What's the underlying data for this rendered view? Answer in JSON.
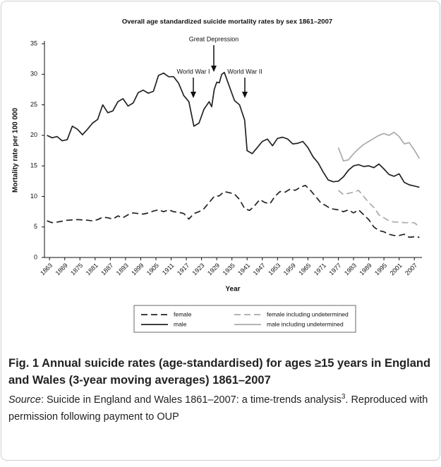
{
  "chart_data": {
    "type": "line",
    "title": "Overall age standardized suicide mortality rates by sex 1861–2007",
    "x_label": "Year",
    "y_label": "Mortality rate per 100 000",
    "xlim": [
      1861,
      2010
    ],
    "ylim": [
      0,
      35
    ],
    "yticks": [
      0,
      5,
      10,
      15,
      20,
      25,
      30,
      35
    ],
    "xticks": [
      1863,
      1869,
      1875,
      1881,
      1887,
      1893,
      1899,
      1905,
      1911,
      1917,
      1923,
      1929,
      1935,
      1941,
      1947,
      1953,
      1959,
      1965,
      1971,
      1977,
      1983,
      1989,
      1995,
      2001,
      2007
    ],
    "grid": false,
    "legend": "bottom",
    "annotations": [
      "World War I",
      "Great Depression",
      "World War II"
    ],
    "series": [
      {
        "name": "female",
        "color": "#222222",
        "style": "dashed",
        "x": [
          1862,
          1864,
          1866,
          1870,
          1874,
          1878,
          1880,
          1882,
          1884,
          1886,
          1888,
          1890,
          1892,
          1894,
          1896,
          1898,
          1900,
          1902,
          1904,
          1906,
          1908,
          1910,
          1912,
          1914,
          1916,
          1918,
          1920,
          1922,
          1924,
          1926,
          1928,
          1930,
          1932,
          1934,
          1936,
          1938,
          1940,
          1942,
          1944,
          1946,
          1948,
          1950,
          1952,
          1954,
          1956,
          1958,
          1960,
          1962,
          1964,
          1966,
          1968,
          1970,
          1972,
          1974,
          1977,
          1979,
          1981,
          1983,
          1985,
          1987,
          1989,
          1991,
          1993,
          1995,
          1997,
          1999,
          2001,
          2003,
          2005,
          2007,
          2009
        ],
        "values": [
          6.0,
          5.7,
          5.8,
          6.1,
          6.2,
          6.1,
          6.0,
          6.2,
          6.6,
          6.5,
          6.3,
          6.8,
          6.5,
          7.0,
          7.3,
          7.2,
          7.1,
          7.3,
          7.6,
          7.8,
          7.5,
          7.8,
          7.5,
          7.4,
          7.2,
          6.3,
          7.2,
          7.5,
          8.0,
          9.0,
          10.0,
          10.1,
          10.8,
          10.6,
          10.4,
          9.5,
          8.0,
          7.7,
          8.5,
          9.5,
          9.0,
          8.8,
          10.0,
          10.8,
          10.7,
          11.2,
          11.0,
          11.5,
          11.8,
          11.0,
          10.0,
          9.0,
          8.5,
          8.0,
          7.8,
          7.5,
          7.8,
          7.3,
          7.8,
          7.0,
          6.2,
          5.0,
          4.4,
          4.2,
          3.8,
          3.6,
          3.6,
          3.8,
          3.3,
          3.4,
          3.3
        ]
      },
      {
        "name": "male",
        "color": "#222222",
        "style": "solid",
        "x": [
          1862,
          1864,
          1866,
          1868,
          1870,
          1872,
          1874,
          1876,
          1878,
          1880,
          1882,
          1884,
          1886,
          1888,
          1890,
          1892,
          1894,
          1896,
          1898,
          1900,
          1902,
          1904,
          1906,
          1908,
          1910,
          1912,
          1914,
          1916,
          1918,
          1920,
          1922,
          1924,
          1926,
          1927,
          1928,
          1929,
          1930,
          1931,
          1932,
          1934,
          1936,
          1938,
          1940,
          1941,
          1943,
          1945,
          1947,
          1949,
          1951,
          1953,
          1955,
          1957,
          1959,
          1961,
          1963,
          1965,
          1967,
          1969,
          1971,
          1973,
          1975,
          1977,
          1979,
          1981,
          1983,
          1985,
          1987,
          1989,
          1991,
          1993,
          1995,
          1997,
          1999,
          2001,
          2003,
          2005,
          2007,
          2009
        ],
        "values": [
          20.0,
          19.6,
          19.8,
          19.1,
          19.3,
          21.5,
          21.0,
          20.1,
          21.0,
          22.0,
          22.6,
          25.0,
          23.7,
          24.0,
          25.5,
          26.0,
          24.8,
          25.3,
          27.0,
          27.4,
          26.9,
          27.2,
          29.8,
          30.2,
          29.6,
          29.6,
          28.5,
          26.5,
          25.5,
          21.5,
          22.0,
          24.3,
          25.5,
          24.7,
          27.5,
          28.7,
          28.6,
          30.0,
          30.3,
          28.0,
          25.7,
          25.0,
          22.5,
          17.5,
          17.0,
          18.0,
          19.0,
          19.4,
          18.3,
          19.5,
          19.7,
          19.4,
          18.6,
          18.7,
          19.0,
          18.0,
          16.5,
          15.5,
          14.0,
          12.7,
          12.4,
          12.5,
          13.2,
          14.3,
          15.0,
          15.2,
          14.9,
          15.0,
          14.7,
          15.3,
          14.5,
          13.6,
          13.3,
          13.7,
          12.3,
          11.9,
          11.7,
          11.5
        ]
      },
      {
        "name": "female including undetermined",
        "color": "#aaaaaa",
        "style": "dashed",
        "x": [
          1977,
          1979,
          1981,
          1983,
          1985,
          1987,
          1989,
          1991,
          1993,
          1995,
          1997,
          1999,
          2001,
          2003,
          2005,
          2007,
          2009
        ],
        "values": [
          11.0,
          10.3,
          10.5,
          10.7,
          11.0,
          10.0,
          9.0,
          8.2,
          7.0,
          6.5,
          6.0,
          5.8,
          5.8,
          5.7,
          5.7,
          5.7,
          5.0
        ]
      },
      {
        "name": "male including undetermined",
        "color": "#aaaaaa",
        "style": "solid",
        "x": [
          1977,
          1979,
          1981,
          1983,
          1985,
          1987,
          1989,
          1991,
          1993,
          1995,
          1997,
          1999,
          2001,
          2003,
          2005,
          2007,
          2009
        ],
        "values": [
          18.0,
          15.8,
          16.0,
          17.0,
          17.8,
          18.5,
          19.0,
          19.5,
          20.0,
          20.3,
          20.0,
          20.5,
          19.8,
          18.6,
          18.8,
          17.6,
          16.2
        ]
      }
    ]
  },
  "caption": {
    "label": "Fig. 1",
    "title": "Annual suicide rates (age-standardised) for ages ≥15 years in England and Wales (3-year moving averages) 1861–2007",
    "source_label": "Source",
    "source_text": ": Suicide in England and Wales 1861–2007: a time-trends analysis",
    "source_ref": "3",
    "source_tail": ". Reproduced with permission following payment to OUP"
  }
}
